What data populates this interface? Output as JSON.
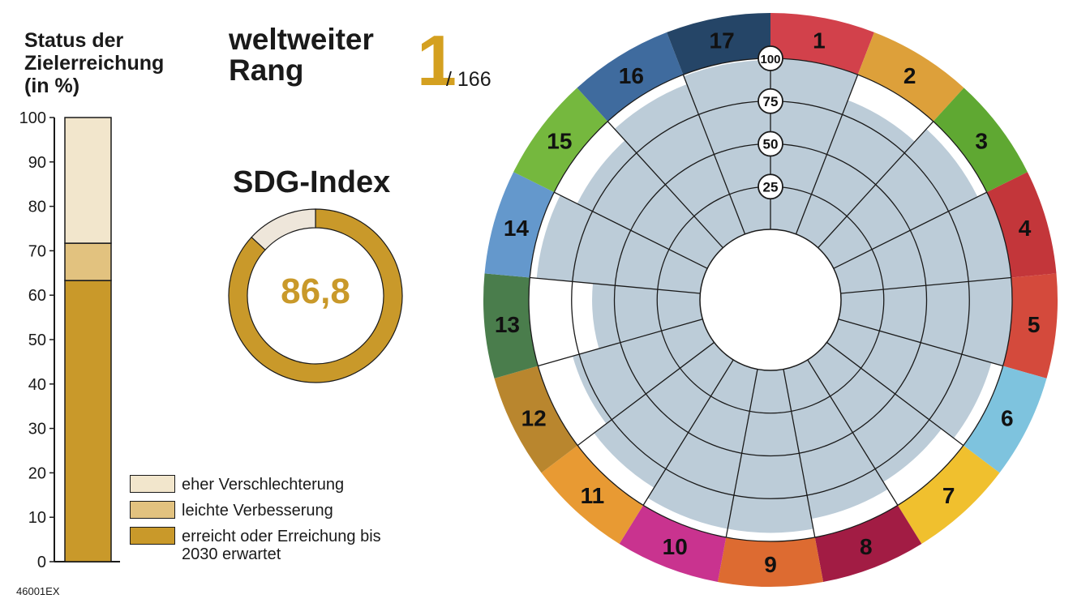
{
  "status": {
    "title_lines": [
      "Status der",
      "Zielerreichung",
      "(in %)"
    ],
    "y_ticks": [
      "0",
      "10",
      "20",
      "30",
      "40",
      "50",
      "60",
      "70",
      "80",
      "90",
      "100"
    ]
  },
  "legend": {
    "items": [
      {
        "label": "eher Verschlechterung",
        "color": "#f2e6cc"
      },
      {
        "label": "leichte Verbesserung",
        "color": "#e2c27f"
      },
      {
        "label": "erreicht oder Erreichung bis",
        "label2": "2030 erwartet",
        "color": "#c9992a"
      }
    ]
  },
  "rank": {
    "title_lines": [
      "weltweiter",
      "Rang"
    ],
    "value": "1",
    "total": "/ 166"
  },
  "sdg_index": {
    "title": "SDG-Index",
    "value_label": "86,8",
    "value": 86.8
  },
  "footnote": "46001EX",
  "chart_data": [
    {
      "type": "bar",
      "title": "Status der Zielerreichung (in %)",
      "ylim": [
        0,
        100
      ],
      "categories": [
        ""
      ],
      "series": [
        {
          "name": "erreicht oder Erreichung bis 2030 erwartet",
          "values": [
            63.3
          ],
          "color": "#c9992a"
        },
        {
          "name": "leichte Verbesserung",
          "values": [
            8.4
          ],
          "color": "#e2c27f"
        },
        {
          "name": "eher Verschlechterung",
          "values": [
            28.3
          ],
          "color": "#f2e6cc"
        }
      ]
    },
    {
      "type": "pie",
      "title": "SDG-Index",
      "values": [
        86.8,
        13.2
      ],
      "colors": [
        "#c9992a",
        "#eee6da"
      ]
    },
    {
      "type": "radial-bar",
      "ring_labels": [
        "25",
        "50",
        "75",
        "100"
      ],
      "goals": [
        "1",
        "2",
        "3",
        "4",
        "5",
        "6",
        "7",
        "8",
        "9",
        "10",
        "11",
        "12",
        "13",
        "14",
        "15",
        "16",
        "17"
      ],
      "goal_colors": [
        "#d2414b",
        "#dda03a",
        "#5fa832",
        "#c3363a",
        "#d44a3c",
        "#7ec3de",
        "#f0c02e",
        "#a21c44",
        "#dd6b31",
        "#c9338f",
        "#e89a33",
        "#b9862e",
        "#4a7d4c",
        "#6498cc",
        "#75b83e",
        "#3f6b9e",
        "#254567"
      ],
      "values": [
        100,
        84,
        94,
        100,
        100,
        93,
        84,
        89,
        95,
        95,
        88,
        79,
        63,
        96,
        85,
        94,
        99
      ],
      "fill_color": "#bcccd8"
    }
  ]
}
